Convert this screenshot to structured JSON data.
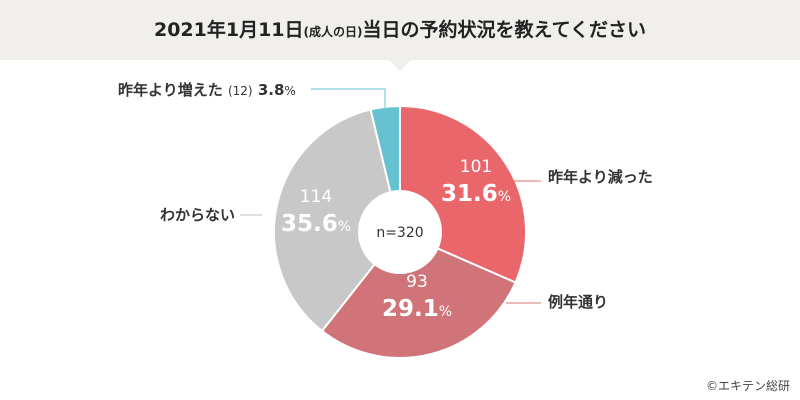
{
  "title": {
    "main_before": "2021年1月11日",
    "main_small": "(成人の日)",
    "main_after": "当日の予約状況を教えてください"
  },
  "center_label": "n=320",
  "credit": "©エキテン総研",
  "chart_data": {
    "type": "pie",
    "style": "donut",
    "total_n": 320,
    "slices": [
      {
        "label": "昨年より減った",
        "count": 101,
        "percent": 31.6,
        "pct_text": "31.6",
        "color": "#e9676a"
      },
      {
        "label": "例年通り",
        "count": 93,
        "percent": 29.1,
        "pct_text": "29.1",
        "color": "#d0747a"
      },
      {
        "label": "わからない",
        "count": 114,
        "percent": 35.6,
        "pct_text": "35.6",
        "color": "#c8c8c8"
      },
      {
        "label": "昨年より増えた",
        "count": 12,
        "percent": 3.8,
        "pct_text": "3.8",
        "color": "#66c2d1"
      }
    ],
    "pct_unit": "%"
  }
}
